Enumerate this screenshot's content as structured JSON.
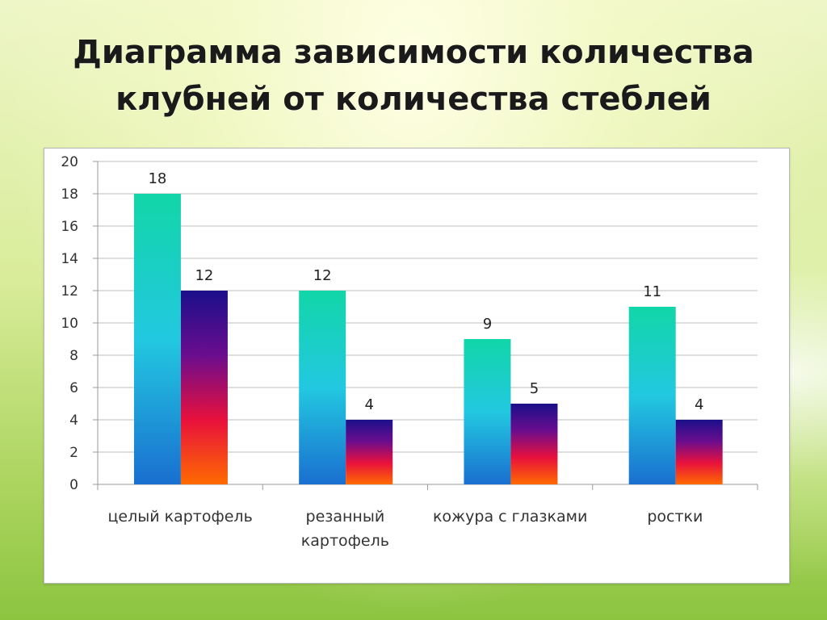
{
  "slide": {
    "title_line1": "Диаграмма зависимости количества",
    "title_line2": "клубней от количества стеблей"
  },
  "chart_data": {
    "type": "bar",
    "title": "Диаграмма зависимости количества клубней от количества стеблей",
    "xlabel": "",
    "ylabel": "",
    "categories": [
      [
        "целый картофель"
      ],
      [
        "резанный",
        "картофель"
      ],
      [
        "кожура с глазками"
      ],
      [
        "ростки"
      ]
    ],
    "series": [
      {
        "values": [
          18,
          12,
          9,
          11
        ],
        "gradient": [
          "#12d6a8",
          "#22c8e0",
          "#1a6fd0"
        ]
      },
      {
        "values": [
          12,
          4,
          5,
          4
        ],
        "gradient": [
          "#1b0f8a",
          "#6a0d8e",
          "#e8103c",
          "#ff6a00"
        ]
      }
    ],
    "data_labels": true,
    "ylim": [
      0,
      20
    ],
    "yticks": [
      0,
      2,
      4,
      6,
      8,
      10,
      12,
      14,
      16,
      18,
      20
    ],
    "grid": true,
    "legend": "none"
  }
}
